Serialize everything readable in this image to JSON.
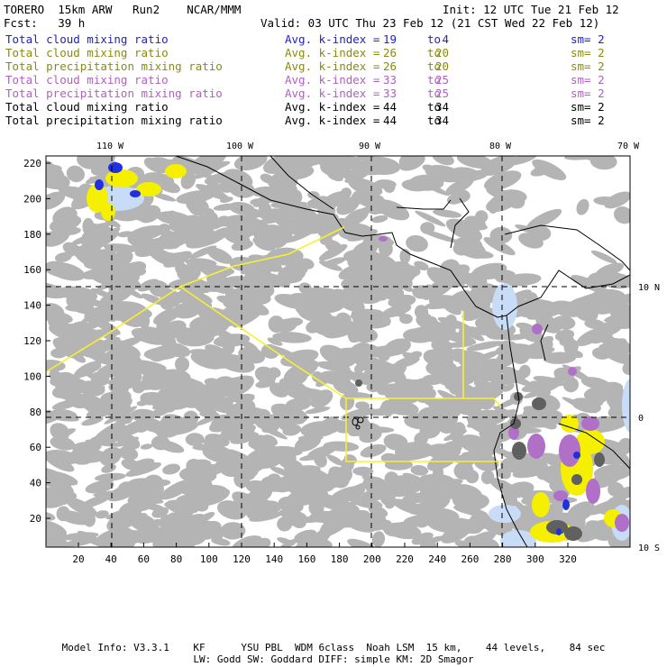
{
  "header": {
    "model": "TORERO  15km ARW   Run2    NCAR/MMM",
    "init": "Init: 12 UTC Tue 21 Feb 12",
    "fcst": "Fcst:   39 h",
    "valid": "Valid: 03 UTC Thu 23 Feb 12 (21 CST Wed 22 Feb 12)"
  },
  "fields": [
    {
      "name": "Total cloud mixing ratio",
      "label": "Avg. k-index =",
      "from": "19",
      "to_word": "to",
      "to": "4",
      "sm": "sm= 2",
      "color": "#2020d0"
    },
    {
      "name": "Total cloud mixing ratio",
      "label": "Avg. k-index =",
      "from": "26",
      "to_word": "to",
      "to": "20",
      "sm": "sm= 2",
      "color": "#8a8a10"
    },
    {
      "name": "Total precipitation mixing ratio",
      "label": "Avg. k-index =",
      "from": "26",
      "to_word": "to",
      "to": "20",
      "sm": "sm= 2",
      "color": "#8a8a10"
    },
    {
      "name": "Total cloud mixing ratio",
      "label": "Avg. k-index =",
      "from": "33",
      "to_word": "to",
      "to": "25",
      "sm": "sm= 2",
      "color": "#b060c0"
    },
    {
      "name": "Total precipitation mixing ratio",
      "label": "Avg. k-index =",
      "from": "33",
      "to_word": "to",
      "to": "25",
      "sm": "sm= 2",
      "color": "#b060c0"
    },
    {
      "name": "Total cloud mixing ratio",
      "label": "Avg. k-index =",
      "from": "44",
      "to_word": "to",
      "to": "34",
      "sm": "sm= 2",
      "color": "#000000"
    },
    {
      "name": "Total precipitation mixing ratio",
      "label": "Avg. k-index =",
      "from": "44",
      "to_word": "to",
      "to": "34",
      "sm": "sm= 2",
      "color": "#000000"
    }
  ],
  "axes": {
    "lon_labels": [
      "110 W",
      "100 W",
      "90 W",
      "80 W",
      "70 W"
    ],
    "lat_labels": [
      "10 N",
      "0",
      "10 S"
    ],
    "x_ticks": [
      "20",
      "40",
      "60",
      "80",
      "100",
      "120",
      "140",
      "160",
      "180",
      "200",
      "220",
      "240",
      "260",
      "280",
      "300",
      "320"
    ],
    "y_ticks": [
      "220",
      "200",
      "180",
      "160",
      "140",
      "120",
      "100",
      "80",
      "60",
      "40",
      "20"
    ]
  },
  "footer": {
    "line1": "Model Info: V3.3.1    KF      YSU PBL  WDM 6class  Noah LSM  15 km,    44 levels,    84 sec",
    "line2": "LW: Godd SW: Goddard DIFF: simple KM: 2D Smagor"
  },
  "colors": {
    "gray_cloud": "#b4b4b4",
    "dark_cloud": "#606060",
    "yellow": "#f4f000",
    "purple": "#b070c8",
    "blue": "#2030e0",
    "light_blue": "#c8dcf8",
    "track": "#f8f030"
  }
}
